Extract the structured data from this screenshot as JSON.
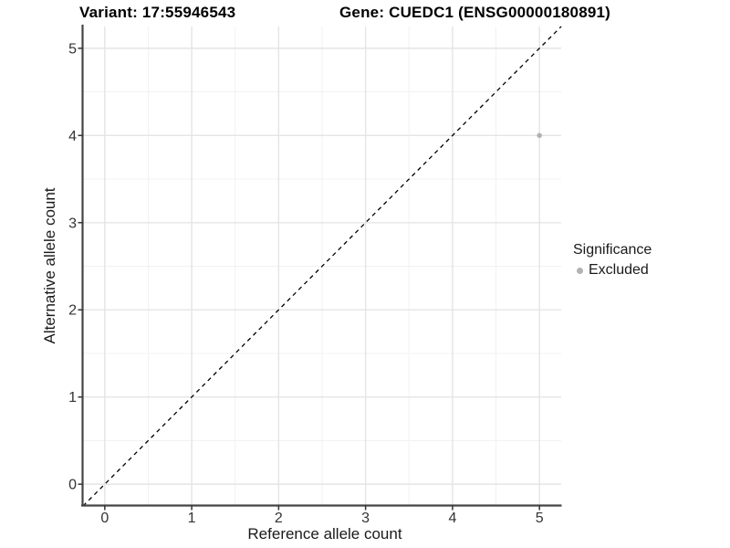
{
  "titles": {
    "variant": "Variant: 17:55946543",
    "gene": "Gene: CUEDC1 (ENSG00000180891)"
  },
  "legend": {
    "title": "Significance",
    "items": [
      {
        "label": "Excluded",
        "color": "#b2b2b2"
      }
    ]
  },
  "chart_data": {
    "type": "scatter",
    "titles": [
      "Variant: 17:55946543",
      "Gene: CUEDC1 (ENSG00000180891)"
    ],
    "xlabel": "Reference allele count",
    "ylabel": "Alternative allele count",
    "xlim": [
      -0.25,
      5.25
    ],
    "ylim": [
      -0.25,
      5.25
    ],
    "x_ticks": [
      0,
      1,
      2,
      3,
      4,
      5
    ],
    "y_ticks": [
      0,
      1,
      2,
      3,
      4,
      5
    ],
    "minor_ticks": [
      0.5,
      1.5,
      2.5,
      3.5,
      4.5
    ],
    "grid": "major+minor",
    "legend_position": "right",
    "series": [
      {
        "name": "Excluded",
        "color": "#b2b2b2",
        "points": [
          {
            "x": 5,
            "y": 4
          }
        ]
      }
    ],
    "reference_line": {
      "kind": "identity y=x",
      "style": "dashed",
      "color": "#000000"
    },
    "colors": {
      "grid_major": "#e4e4e4",
      "grid_minor": "#f1f1f1",
      "axis_line": "#454545",
      "tick_mark": "#333333",
      "text": "#1a1a1a"
    }
  }
}
